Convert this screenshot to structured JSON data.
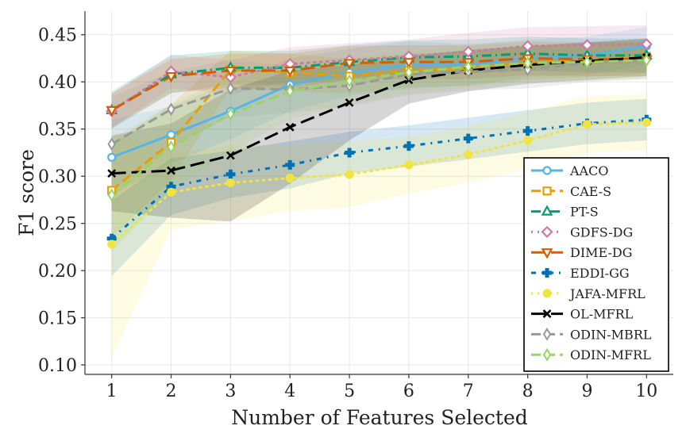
{
  "chart_data": {
    "type": "line",
    "title": "",
    "xlabel": "Number of Features Selected",
    "ylabel": "F1 score",
    "xlim": [
      0.55,
      10.45
    ],
    "ylim": [
      0.09,
      0.475
    ],
    "x": [
      1,
      2,
      3,
      4,
      5,
      6,
      7,
      8,
      9,
      10
    ],
    "x_tick_labels": [
      "1",
      "2",
      "3",
      "4",
      "5",
      "6",
      "7",
      "8",
      "9",
      "10"
    ],
    "y_ticks": [
      0.1,
      0.15,
      0.2,
      0.25,
      0.3,
      0.35,
      0.4,
      0.45
    ],
    "y_tick_labels": [
      "0.10",
      "0.15",
      "0.20",
      "0.25",
      "0.30",
      "0.35",
      "0.40",
      "0.45"
    ],
    "grid": true,
    "legend_position": "lower-right",
    "series": [
      {
        "name": "AACO",
        "color": "#56b4e9",
        "dash": "solid",
        "marker": "circle",
        "values": [
          0.32,
          0.344,
          0.369,
          0.397,
          0.41,
          0.418,
          0.418,
          0.425,
          0.428,
          0.438
        ],
        "band": [
          0.04,
          0.03,
          0.03,
          0.028,
          0.025,
          0.025,
          0.022,
          0.02,
          0.02,
          0.02
        ]
      },
      {
        "name": "CAE-S",
        "color": "#e69f00",
        "dash": "dash",
        "marker": "square",
        "values": [
          0.285,
          0.336,
          0.413,
          0.41,
          0.406,
          0.412,
          0.414,
          0.42,
          0.423,
          0.427
        ],
        "band": [
          0.05,
          0.04,
          0.02,
          0.02,
          0.018,
          0.018,
          0.018,
          0.018,
          0.018,
          0.018
        ]
      },
      {
        "name": "PT-S",
        "color": "#009e73",
        "dash": "dashdot",
        "marker": "triangle",
        "values": [
          0.37,
          0.408,
          0.415,
          0.415,
          0.421,
          0.426,
          0.427,
          0.43,
          0.428,
          0.428
        ],
        "band": [
          0.02,
          0.02,
          0.018,
          0.018,
          0.018,
          0.018,
          0.018,
          0.018,
          0.018,
          0.018
        ]
      },
      {
        "name": "GDFS-DG",
        "color": "#cc79a7",
        "dash": "dot",
        "marker": "diamond",
        "values": [
          0.369,
          0.411,
          0.405,
          0.419,
          0.423,
          0.427,
          0.432,
          0.438,
          0.439,
          0.44
        ],
        "band": [
          0.018,
          0.018,
          0.018,
          0.018,
          0.018,
          0.018,
          0.02,
          0.02,
          0.02,
          0.02
        ]
      },
      {
        "name": "DIME-DG",
        "color": "#d55e00",
        "dash": "longdash",
        "marker": "triangle-down",
        "values": [
          0.37,
          0.406,
          0.412,
          0.412,
          0.42,
          0.421,
          0.421,
          0.425,
          0.424,
          0.424
        ],
        "band": [
          0.018,
          0.018,
          0.018,
          0.018,
          0.018,
          0.018,
          0.018,
          0.018,
          0.018,
          0.018
        ]
      },
      {
        "name": "EDDI-GG",
        "color": "#0072b2",
        "dash": "dashdot2",
        "marker": "plus",
        "values": [
          0.234,
          0.289,
          0.302,
          0.312,
          0.325,
          0.332,
          0.34,
          0.348,
          0.356,
          0.36
        ],
        "band": [
          0.04,
          0.03,
          0.025,
          0.025,
          0.022,
          0.022,
          0.022,
          0.022,
          0.022,
          0.022
        ]
      },
      {
        "name": "JAFA-MFRL",
        "color": "#f0e442",
        "dash": "dot",
        "marker": "octagon",
        "values": [
          0.228,
          0.283,
          0.293,
          0.298,
          0.302,
          0.312,
          0.323,
          0.338,
          0.355,
          0.357
        ],
        "band": [
          0.12,
          0.04,
          0.04,
          0.035,
          0.035,
          0.03,
          0.03,
          0.03,
          0.03,
          0.03
        ]
      },
      {
        "name": "OL-MFRL",
        "color": "#000000",
        "dash": "longdash",
        "marker": "x",
        "values": [
          0.303,
          0.306,
          0.322,
          0.352,
          0.378,
          0.402,
          0.412,
          0.418,
          0.422,
          0.426
        ],
        "band": [
          0.04,
          0.05,
          0.07,
          0.06,
          0.04,
          0.025,
          0.022,
          0.02,
          0.02,
          0.02
        ]
      },
      {
        "name": "ODIN-MBRL",
        "color": "#999999",
        "dash": "dash",
        "marker": "thin-diamond",
        "values": [
          0.334,
          0.371,
          0.393,
          0.392,
          0.396,
          0.408,
          0.411,
          0.413,
          0.42,
          0.423
        ],
        "band": [
          0.05,
          0.04,
          0.03,
          0.025,
          0.022,
          0.022,
          0.02,
          0.02,
          0.02,
          0.02
        ]
      },
      {
        "name": "ODIN-MFRL",
        "color": "#9ad466",
        "dash": "dash",
        "marker": "thin-diamond",
        "values": [
          0.28,
          0.331,
          0.366,
          0.39,
          0.401,
          0.41,
          0.416,
          0.42,
          0.421,
          0.423
        ],
        "band": [
          0.06,
          0.045,
          0.04,
          0.03,
          0.025,
          0.022,
          0.022,
          0.02,
          0.02,
          0.02
        ]
      }
    ]
  }
}
